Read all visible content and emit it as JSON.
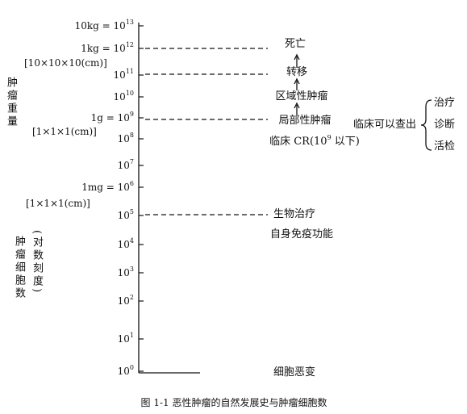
{
  "axis_labels": [
    {
      "prefix": "10kg = ",
      "base": "10",
      "exp": "13"
    },
    {
      "prefix": "1kg = ",
      "base": "10",
      "exp": "12"
    },
    {
      "base": "10",
      "exp": "11"
    },
    {
      "base": "10",
      "exp": "10"
    },
    {
      "prefix": "1g = ",
      "base": "10",
      "exp": "9"
    },
    {
      "base": "10",
      "exp": "8"
    },
    {
      "base": "10",
      "exp": "7"
    },
    {
      "prefix": "1mg = ",
      "base": "10",
      "exp": "6"
    },
    {
      "base": "10",
      "exp": "5"
    },
    {
      "base": "10",
      "exp": "4"
    },
    {
      "base": "10",
      "exp": "3"
    },
    {
      "base": "10",
      "exp": "2"
    },
    {
      "base": "10",
      "exp": "1"
    },
    {
      "base": "10",
      "exp": "0"
    }
  ],
  "volume_notes": [
    "[10×10×10(cm)]",
    "[1×1×1(cm)]",
    "[1×1×1(cm)]"
  ],
  "weight_title": "肿瘤重量",
  "count_title": "肿瘤细胞数",
  "scale_note": "(对数刻度)",
  "stages": [
    "死亡",
    "转移",
    "区域性肿瘤",
    "局部性肿瘤",
    "生物治疗",
    "自身免疫功能",
    "细胞恶变"
  ],
  "clinical_cr": {
    "before": "临床 CR(10",
    "exp": "9",
    "after": " 以下)"
  },
  "clinical": {
    "label": "临床可以查出",
    "items": [
      "治疗",
      "诊断",
      "活检"
    ]
  },
  "caption": "图 1-1  恶性肿瘤的自然发展史与肿瘤细胞数"
}
